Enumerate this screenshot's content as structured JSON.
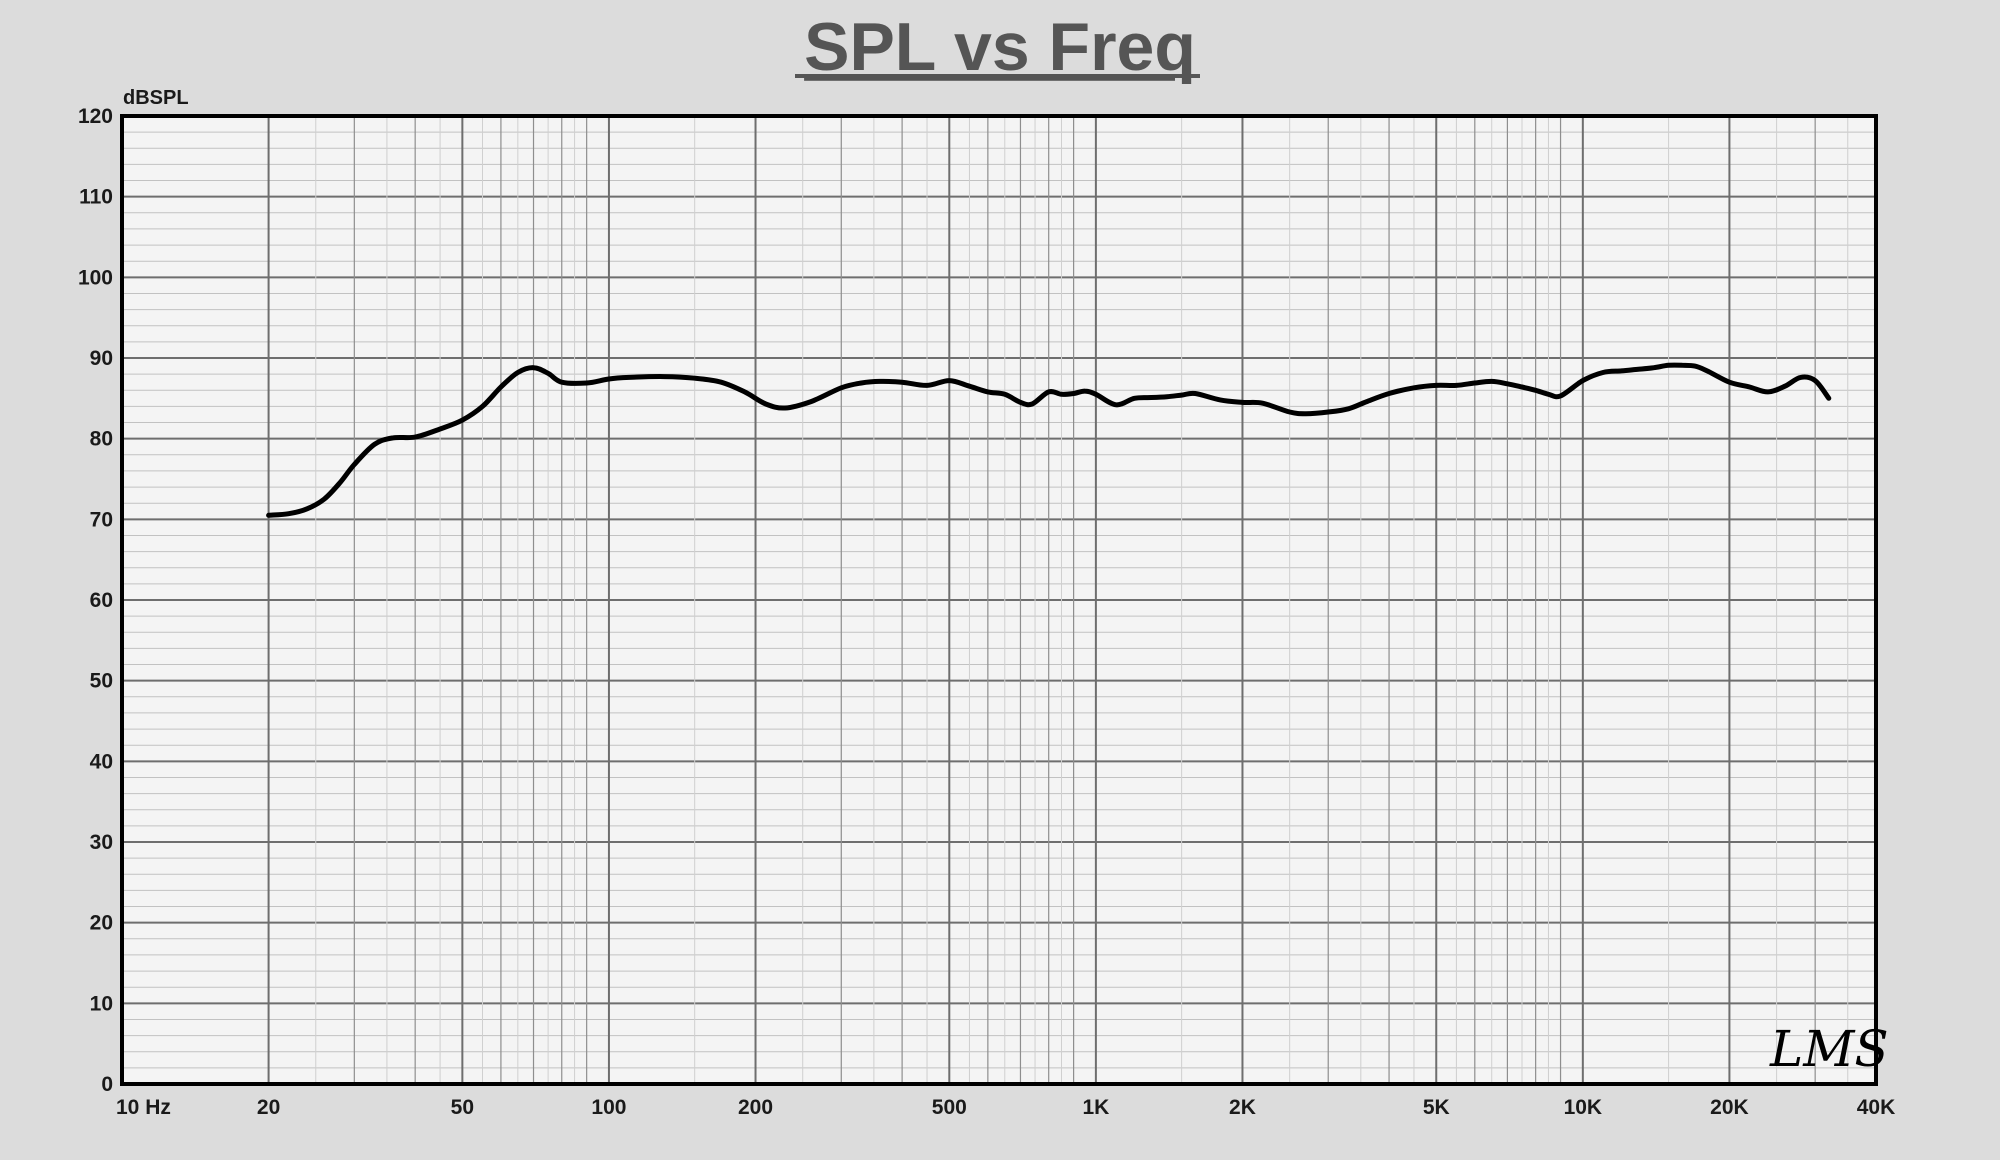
{
  "chart_data": {
    "type": "line",
    "title": "SPL vs Freq",
    "ylabel": "dBSPL",
    "x_scale": "log",
    "xlim": [
      10,
      40000
    ],
    "ylim": [
      0,
      120
    ],
    "grid": true,
    "y_ticks": [
      0,
      10,
      20,
      30,
      40,
      50,
      60,
      70,
      80,
      90,
      100,
      110,
      120
    ],
    "x_ticks": [
      {
        "value": 10,
        "label": "10  Hz"
      },
      {
        "value": 20,
        "label": "20"
      },
      {
        "value": 50,
        "label": "50"
      },
      {
        "value": 100,
        "label": "100"
      },
      {
        "value": 200,
        "label": "200"
      },
      {
        "value": 500,
        "label": "500"
      },
      {
        "value": 1000,
        "label": "1K"
      },
      {
        "value": 2000,
        "label": "2K"
      },
      {
        "value": 5000,
        "label": "5K"
      },
      {
        "value": 10000,
        "label": "10K"
      },
      {
        "value": 20000,
        "label": "20K"
      },
      {
        "value": 40000,
        "label": "40K"
      }
    ],
    "series": [
      {
        "x": [
          20,
          22,
          24,
          26,
          28,
          30,
          33,
          36,
          40,
          45,
          50,
          55,
          60,
          65,
          70,
          75,
          80,
          90,
          100,
          110,
          130,
          150,
          170,
          190,
          210,
          230,
          260,
          300,
          330,
          360,
          400,
          450,
          500,
          550,
          600,
          650,
          700,
          740,
          800,
          850,
          900,
          950,
          1000,
          1100,
          1200,
          1300,
          1400,
          1500,
          1600,
          1800,
          2000,
          2200,
          2500,
          2700,
          3000,
          3300,
          3600,
          4000,
          4500,
          5000,
          5500,
          6000,
          6500,
          7000,
          7500,
          8000,
          8500,
          9000,
          10000,
          11000,
          12000,
          13000,
          14000,
          15000,
          16000,
          17000,
          18000,
          20000,
          22000,
          24000,
          26000,
          28000,
          30000,
          32000
        ],
        "values": [
          70.5,
          70.7,
          71.3,
          72.5,
          74.5,
          76.8,
          79.3,
          80.1,
          80.2,
          81.2,
          82.3,
          84.0,
          86.4,
          88.2,
          88.8,
          88.1,
          87.0,
          86.9,
          87.4,
          87.6,
          87.7,
          87.5,
          87.0,
          85.8,
          84.3,
          83.8,
          84.6,
          86.3,
          86.9,
          87.1,
          87.0,
          86.6,
          87.2,
          86.5,
          85.8,
          85.5,
          84.5,
          84.3,
          85.8,
          85.5,
          85.6,
          85.9,
          85.5,
          84.2,
          85.0,
          85.1,
          85.2,
          85.4,
          85.6,
          84.8,
          84.5,
          84.4,
          83.3,
          83.1,
          83.3,
          83.7,
          84.6,
          85.6,
          86.3,
          86.6,
          86.6,
          86.9,
          87.1,
          86.8,
          86.4,
          86.0,
          85.5,
          85.3,
          87.2,
          88.2,
          88.4,
          88.6,
          88.8,
          89.1,
          89.1,
          89.0,
          88.4,
          87.0,
          86.4,
          85.8,
          86.5,
          87.6,
          87.2,
          85.0
        ]
      }
    ]
  },
  "brand": "LMS"
}
